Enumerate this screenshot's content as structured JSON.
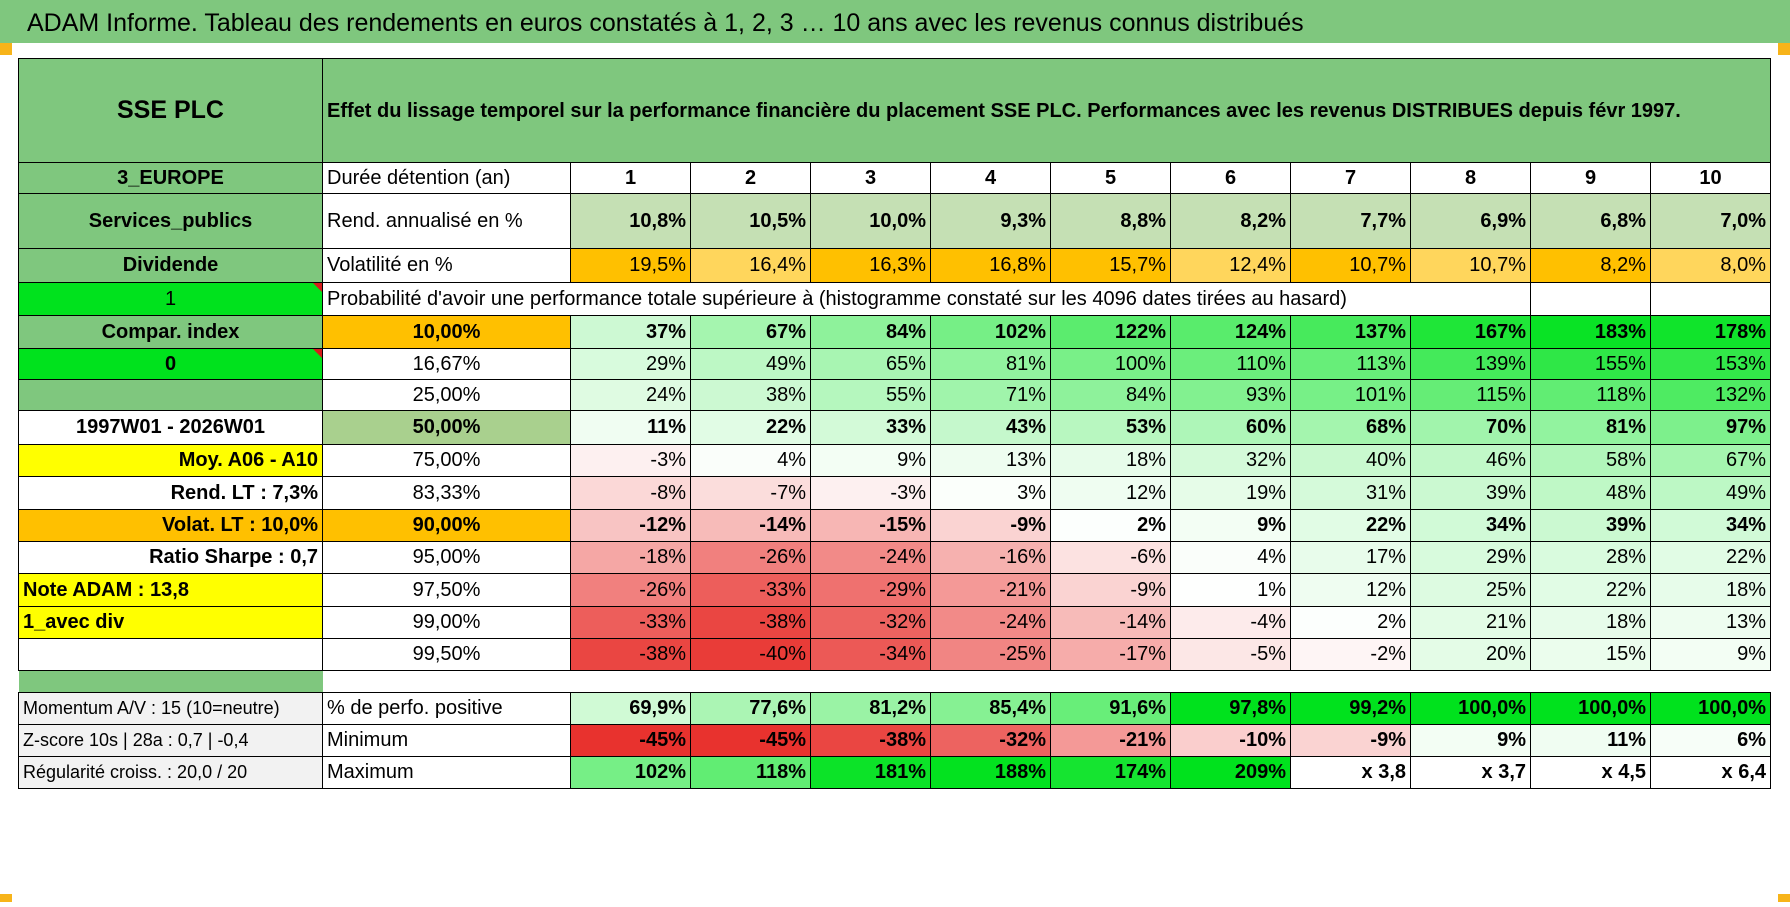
{
  "page_title": "ADAM Informe. Tableau des rendements en euros constatés à 1, 2, 3 … 10 ans avec les revenus connus distribués",
  "fund": {
    "name": "SSE PLC",
    "region": "3_EUROPE",
    "sector": "Services_publics",
    "income_type": "Dividende",
    "flag_1": "1",
    "compar_label": "Compar. index",
    "flag_0": "0",
    "period": "1997W01 - 2026W01",
    "moy_label": "Moy. A06 - A10",
    "rend_lt": "Rend. LT :    7,3%",
    "volat_lt": "Volat. LT :    10,0%",
    "sharpe": "Ratio Sharpe :     0,7",
    "note": "Note ADAM : 13,8",
    "variant": "1_avec div"
  },
  "description": "Effet du lissage temporel sur la performance financière du placement SSE PLC. Performances avec les revenus DISTRIBUES depuis févr 1997.",
  "labels": {
    "duration": "Durée détention (an)",
    "rend": "Rend. annualisé en %",
    "vol": "Volatilité en %",
    "probability": "Probabilité d'avoir une performance totale supérieure à (histogramme constaté sur les 4096 dates tirées au hasard)",
    "positive": "% de perfo. positive",
    "minimum": "Minimum",
    "maximum": "Maximum"
  },
  "years": [
    "1",
    "2",
    "3",
    "4",
    "5",
    "6",
    "7",
    "8",
    "9",
    "10"
  ],
  "rendement": [
    "10,8%",
    "10,5%",
    "10,0%",
    "9,3%",
    "8,8%",
    "8,2%",
    "7,7%",
    "6,9%",
    "6,8%",
    "7,0%"
  ],
  "volatility": [
    "19,5%",
    "16,4%",
    "16,3%",
    "16,8%",
    "15,7%",
    "12,4%",
    "10,7%",
    "10,7%",
    "8,2%",
    "8,0%"
  ],
  "percentile_rows": [
    {
      "label": "10,00%",
      "values": [
        "37%",
        "67%",
        "84%",
        "102%",
        "122%",
        "124%",
        "137%",
        "167%",
        "183%",
        "178%"
      ]
    },
    {
      "label": "16,67%",
      "values": [
        "29%",
        "49%",
        "65%",
        "81%",
        "100%",
        "110%",
        "113%",
        "139%",
        "155%",
        "153%"
      ]
    },
    {
      "label": "25,00%",
      "values": [
        "24%",
        "38%",
        "55%",
        "71%",
        "84%",
        "93%",
        "101%",
        "115%",
        "118%",
        "132%"
      ]
    },
    {
      "label": "50,00%",
      "values": [
        "11%",
        "22%",
        "33%",
        "43%",
        "53%",
        "60%",
        "68%",
        "70%",
        "81%",
        "97%"
      ]
    },
    {
      "label": "75,00%",
      "values": [
        "-3%",
        "4%",
        "9%",
        "13%",
        "18%",
        "32%",
        "40%",
        "46%",
        "58%",
        "67%"
      ]
    },
    {
      "label": "83,33%",
      "values": [
        "-8%",
        "-7%",
        "-3%",
        "3%",
        "12%",
        "19%",
        "31%",
        "39%",
        "48%",
        "49%"
      ]
    },
    {
      "label": "90,00%",
      "values": [
        "-12%",
        "-14%",
        "-15%",
        "-9%",
        "2%",
        "9%",
        "22%",
        "34%",
        "39%",
        "34%"
      ]
    },
    {
      "label": "95,00%",
      "values": [
        "-18%",
        "-26%",
        "-24%",
        "-16%",
        "-6%",
        "4%",
        "17%",
        "29%",
        "28%",
        "22%"
      ]
    },
    {
      "label": "97,50%",
      "values": [
        "-26%",
        "-33%",
        "-29%",
        "-21%",
        "-9%",
        "1%",
        "12%",
        "25%",
        "22%",
        "18%"
      ]
    },
    {
      "label": "99,00%",
      "values": [
        "-33%",
        "-38%",
        "-32%",
        "-24%",
        "-14%",
        "-4%",
        "2%",
        "21%",
        "18%",
        "13%"
      ]
    },
    {
      "label": "99,50%",
      "values": [
        "-38%",
        "-40%",
        "-34%",
        "-25%",
        "-17%",
        "-5%",
        "-2%",
        "20%",
        "15%",
        "9%"
      ]
    }
  ],
  "bottom": {
    "momentum": "Momentum A/V : 15 (10=neutre)",
    "zscore": "Z-score 10s | 28a : 0,7 | -0,4",
    "regularity": "Régularité croiss. : 20,0 / 20",
    "positive": [
      "69,9%",
      "77,6%",
      "81,2%",
      "85,4%",
      "91,6%",
      "97,8%",
      "99,2%",
      "100,0%",
      "100,0%",
      "100,0%"
    ],
    "minimum": [
      "-45%",
      "-45%",
      "-38%",
      "-32%",
      "-21%",
      "-10%",
      "-9%",
      "9%",
      "11%",
      "6%"
    ],
    "maximum": [
      "102%",
      "118%",
      "181%",
      "188%",
      "174%",
      "209%",
      "x 3,8",
      "x 3,7",
      "x 4,5",
      "x 6,4"
    ]
  },
  "colors": {
    "header_green": "#7fc77e",
    "light_green": "#c5e0b4",
    "orange": "#ffc000",
    "yellow": "#ffff00",
    "bright_green": "#00e21d",
    "label_red": "#e01212",
    "corner_marker": "#f7b41a"
  }
}
